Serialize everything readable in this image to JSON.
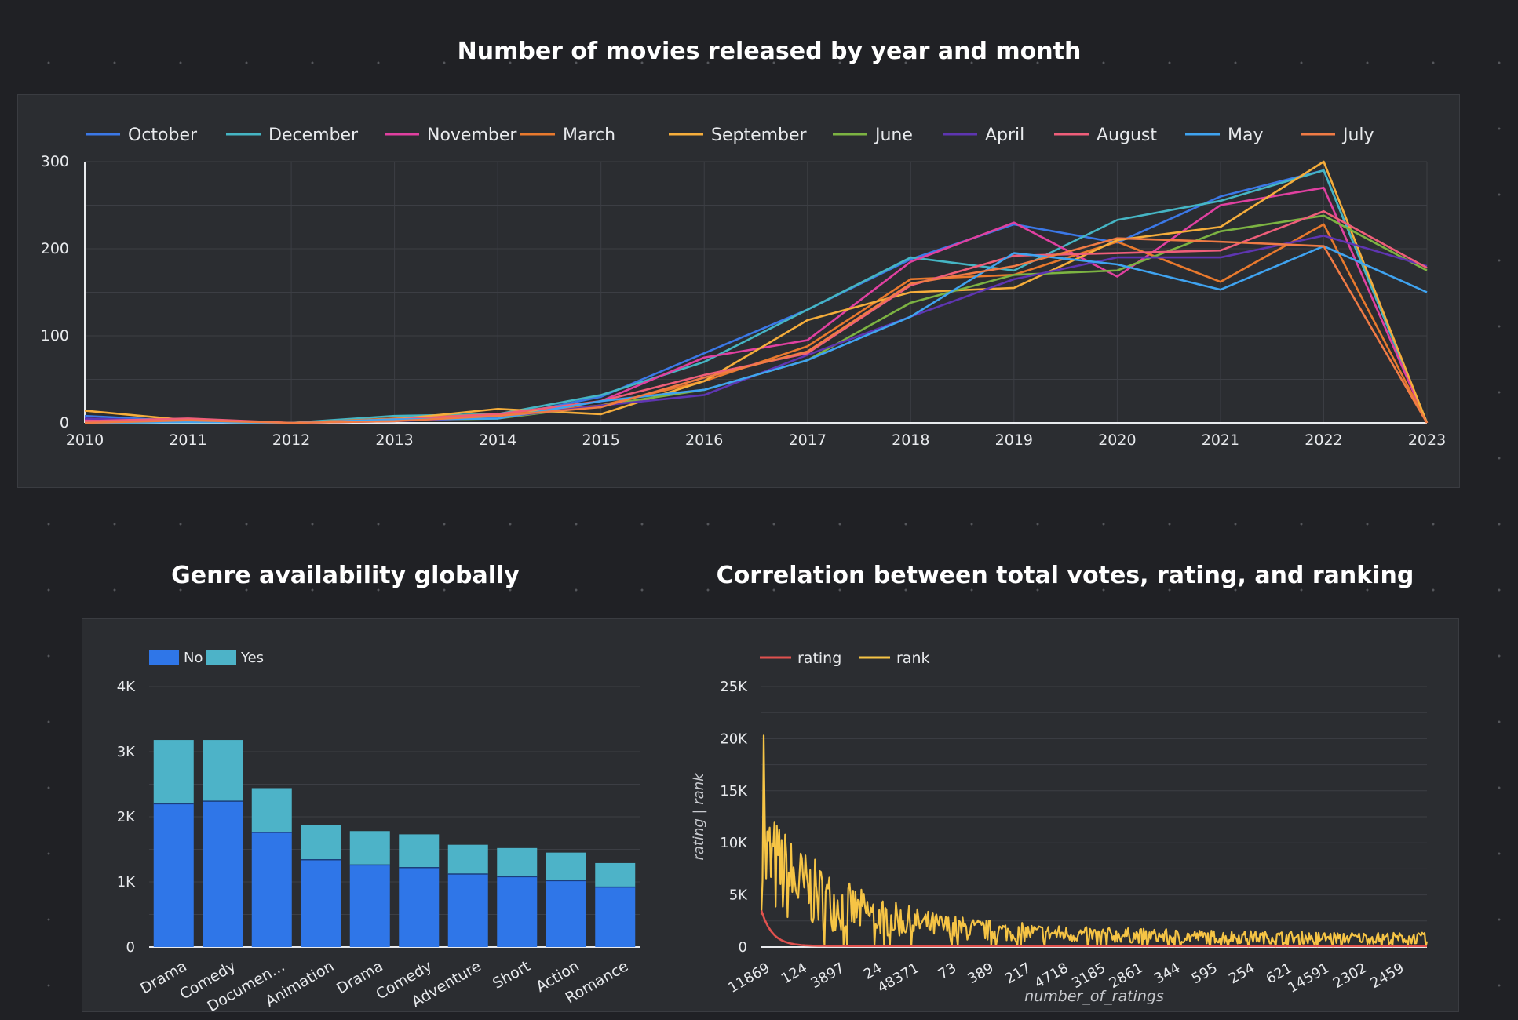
{
  "titles": {
    "top": "Number of movies released by year and month",
    "genre": "Genre availability globally",
    "corr": "Correlation between total votes, rating, and ranking"
  },
  "chart_data": [
    {
      "type": "line",
      "title": "Number of movies released by year and month",
      "legend_position": "top",
      "grid": true,
      "x": [
        2010,
        2011,
        2012,
        2013,
        2014,
        2015,
        2016,
        2017,
        2018,
        2019,
        2020,
        2021,
        2022,
        2023
      ],
      "ylim": [
        0,
        300
      ],
      "y_ticks": [
        0,
        100,
        200,
        300
      ],
      "series": [
        {
          "name": "October",
          "color": "#3b78e7",
          "values": [
            8,
            2,
            0,
            3,
            6,
            30,
            80,
            130,
            188,
            228,
            207,
            260,
            290,
            0
          ]
        },
        {
          "name": "December",
          "color": "#45b5c4",
          "values": [
            0,
            1,
            0,
            8,
            10,
            32,
            70,
            130,
            190,
            175,
            233,
            255,
            290,
            0
          ]
        },
        {
          "name": "November",
          "color": "#e040a0",
          "values": [
            3,
            2,
            0,
            3,
            8,
            25,
            75,
            95,
            185,
            230,
            168,
            250,
            270,
            0
          ]
        },
        {
          "name": "March",
          "color": "#e8792d",
          "values": [
            0,
            3,
            0,
            5,
            10,
            20,
            48,
            88,
            165,
            170,
            208,
            162,
            228,
            0
          ]
        },
        {
          "name": "September",
          "color": "#f5ad3b",
          "values": [
            14,
            3,
            0,
            4,
            16,
            10,
            48,
            118,
            150,
            155,
            210,
            225,
            300,
            0
          ]
        },
        {
          "name": "June",
          "color": "#7cb342",
          "values": [
            0,
            1,
            0,
            3,
            5,
            20,
            38,
            72,
            138,
            170,
            175,
            220,
            238,
            175
          ]
        },
        {
          "name": "April",
          "color": "#5e35b1",
          "values": [
            5,
            2,
            0,
            2,
            6,
            20,
            32,
            78,
            122,
            165,
            190,
            190,
            215,
            180
          ]
        },
        {
          "name": "August",
          "color": "#ef5e7a",
          "values": [
            2,
            5,
            0,
            4,
            10,
            25,
            55,
            80,
            158,
            192,
            195,
            198,
            243,
            178
          ]
        },
        {
          "name": "May",
          "color": "#3fa3f0",
          "values": [
            0,
            1,
            0,
            4,
            5,
            25,
            38,
            72,
            122,
            195,
            182,
            153,
            203,
            150
          ]
        },
        {
          "name": "July",
          "color": "#f07b45",
          "values": [
            0,
            3,
            0,
            2,
            8,
            18,
            52,
            82,
            160,
            180,
            212,
            208,
            203,
            0
          ]
        }
      ]
    },
    {
      "type": "bar",
      "stacked": true,
      "title": "Genre availability globally",
      "legend_position": "top-left",
      "grid": true,
      "categories": [
        "Drama",
        "Comedy",
        "Documen…",
        "Animation",
        "Drama",
        "Comedy",
        "Adventure",
        "Short",
        "Action",
        "Romance"
      ],
      "ylim": [
        0,
        4000
      ],
      "y_ticks": [
        0,
        1000,
        2000,
        3000,
        4000
      ],
      "y_tick_labels": [
        "0",
        "1K",
        "2K",
        "3K",
        "4K"
      ],
      "series": [
        {
          "name": "No",
          "color": "#2f76e8",
          "values": [
            2200,
            2240,
            1760,
            1340,
            1260,
            1220,
            1120,
            1080,
            1020,
            920
          ]
        },
        {
          "name": "Yes",
          "color": "#4db3c8",
          "values": [
            980,
            940,
            680,
            530,
            520,
            510,
            450,
            440,
            430,
            370
          ]
        }
      ]
    },
    {
      "type": "line",
      "title": "Correlation between total votes, rating, and ranking",
      "xlabel": "number_of_ratings",
      "ylabel": "rating | rank",
      "legend_position": "top-left",
      "grid": true,
      "ylim": [
        0,
        25000
      ],
      "y_ticks": [
        0,
        5000,
        10000,
        15000,
        20000,
        25000
      ],
      "y_tick_labels": [
        "0",
        "5K",
        "10K",
        "15K",
        "20K",
        "25K"
      ],
      "x_tick_labels": [
        "11869",
        "124",
        "3897",
        "24",
        "48371",
        "73",
        "389",
        "217",
        "4718",
        "3185",
        "2861",
        "344",
        "595",
        "254",
        "621",
        "14591",
        "2302",
        "2459"
      ],
      "series": [
        {
          "name": "rating",
          "color": "#e0514e",
          "description_values": {
            "start": 3500,
            "decays_to": 100
          }
        },
        {
          "name": "rank",
          "color": "#f6c445",
          "peak": 20300,
          "noisy_decay_to": 700
        }
      ]
    }
  ]
}
